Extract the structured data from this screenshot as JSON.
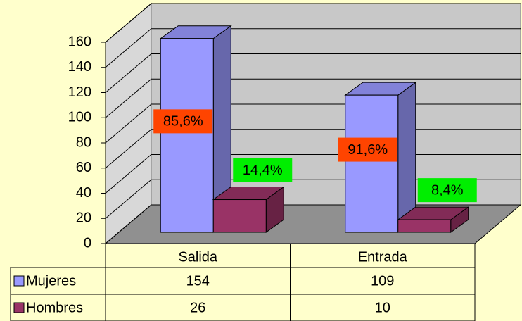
{
  "chart_data": {
    "type": "bar3d",
    "categories": [
      "Salida",
      "Entrada"
    ],
    "series": [
      {
        "name": "Mujeres",
        "color": "#9999ff",
        "values": [
          154,
          109
        ],
        "labels": [
          "85,6%",
          "91,6%"
        ],
        "label_color": "#ff4400"
      },
      {
        "name": "Hombres",
        "color": "#993366",
        "values": [
          26,
          10
        ],
        "labels": [
          "14,4%",
          "8,4%"
        ],
        "label_color": "#00ee00"
      }
    ],
    "ylim": [
      0,
      160
    ],
    "yticks": [
      0,
      20,
      40,
      60,
      80,
      100,
      120,
      140,
      160
    ],
    "grid": true,
    "data_table": true
  }
}
